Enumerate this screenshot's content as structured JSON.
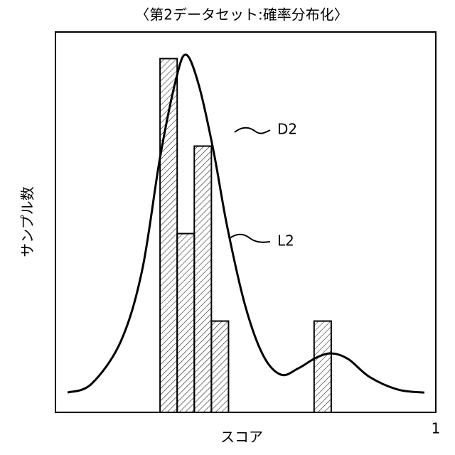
{
  "chart_data": {
    "type": "histogram",
    "title": "〈第2データセット:確率分布化〉",
    "x_label": "スコア",
    "y_label": "サンプル数",
    "bins": [
      0.275,
      0.32,
      0.365,
      0.41,
      0.455,
      0.5,
      0.545,
      0.59,
      0.635,
      0.68,
      0.725
    ],
    "counts": [
      9.3,
      4.7,
      7.0,
      2.4,
      0,
      0,
      0,
      0,
      0,
      2.4
    ],
    "curve": {
      "x": [
        0.032,
        0.095,
        0.172,
        0.228,
        0.275,
        0.318,
        0.344,
        0.377,
        0.415,
        0.452,
        0.499,
        0.546,
        0.593,
        0.639,
        0.686,
        0.727,
        0.77,
        0.826,
        0.9,
        0.97
      ],
      "values": [
        0.52,
        0.75,
        1.87,
        3.74,
        6.7,
        8.8,
        9.4,
        8.6,
        6.9,
        4.86,
        2.8,
        1.5,
        0.99,
        1.16,
        1.44,
        1.55,
        1.4,
        0.93,
        0.6,
        0.52
      ]
    },
    "annotations": [
      "D2",
      "L2"
    ],
    "xlim": [
      0,
      1
    ],
    "xticks": [
      1
    ],
    "ylim": [
      0,
      10
    ]
  }
}
